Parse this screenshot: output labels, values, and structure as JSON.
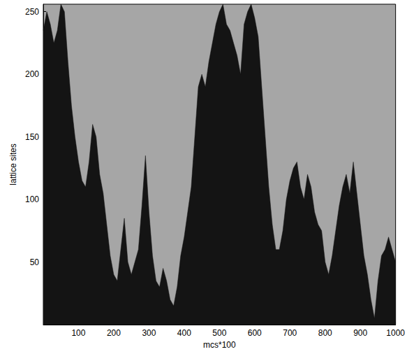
{
  "chart_data": {
    "type": "area",
    "x_label": "mcs*100",
    "y_label": "lattice sites",
    "x": [
      0,
      10,
      20,
      30,
      40,
      50,
      60,
      70,
      80,
      90,
      100,
      110,
      120,
      130,
      140,
      150,
      160,
      170,
      180,
      190,
      200,
      210,
      220,
      230,
      240,
      250,
      260,
      270,
      280,
      290,
      300,
      310,
      320,
      330,
      340,
      350,
      360,
      370,
      380,
      390,
      400,
      410,
      420,
      430,
      440,
      450,
      460,
      470,
      480,
      490,
      500,
      510,
      520,
      530,
      540,
      550,
      560,
      570,
      580,
      590,
      600,
      610,
      620,
      630,
      640,
      650,
      660,
      670,
      680,
      690,
      700,
      710,
      720,
      730,
      740,
      750,
      760,
      770,
      780,
      790,
      800,
      810,
      820,
      830,
      840,
      850,
      860,
      870,
      880,
      890,
      900,
      910,
      920,
      930,
      940,
      950,
      960,
      970,
      980,
      990,
      1000
    ],
    "values": [
      235,
      250,
      240,
      225,
      235,
      256,
      250,
      210,
      175,
      150,
      130,
      115,
      110,
      130,
      160,
      150,
      120,
      105,
      80,
      55,
      40,
      35,
      60,
      85,
      50,
      40,
      50,
      60,
      95,
      135,
      90,
      55,
      35,
      30,
      45,
      35,
      20,
      15,
      30,
      55,
      70,
      90,
      110,
      150,
      190,
      200,
      190,
      210,
      225,
      240,
      250,
      256,
      240,
      235,
      225,
      215,
      200,
      240,
      250,
      256,
      245,
      230,
      190,
      150,
      110,
      80,
      60,
      60,
      75,
      100,
      115,
      125,
      130,
      110,
      100,
      120,
      110,
      90,
      80,
      75,
      50,
      40,
      55,
      75,
      95,
      110,
      120,
      105,
      130,
      105,
      80,
      55,
      40,
      20,
      5,
      35,
      55,
      60,
      70,
      60,
      50
    ],
    "color": "#141414",
    "xlim": [
      0,
      1000
    ],
    "xticks": [
      100,
      200,
      300,
      400,
      500,
      600,
      700,
      800,
      900,
      1000
    ],
    "ylim": [
      0,
      256
    ],
    "yticks": [
      50,
      100,
      150,
      200,
      250
    ],
    "grid": false
  }
}
